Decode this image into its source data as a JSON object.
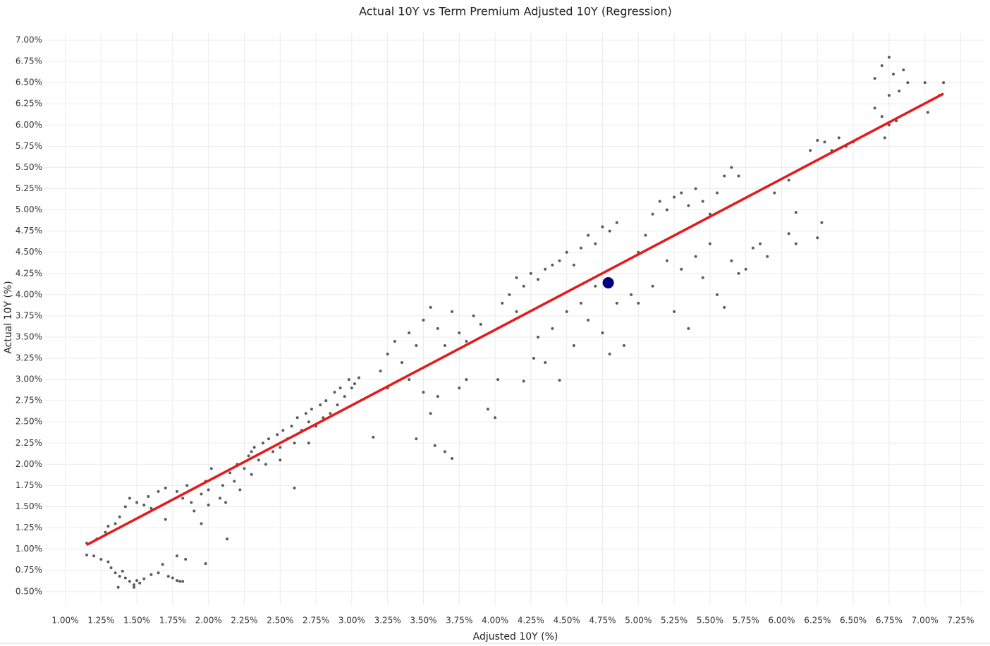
{
  "chart_data": {
    "type": "scatter",
    "title": "Actual 10Y vs Term Premium Adjusted 10Y (Regression)",
    "x_label": "Adjusted 10Y (%)",
    "y_label": "Actual 10Y (%)",
    "grid": true,
    "xlim": [
      0.85,
      7.41
    ],
    "ylim": [
      0.34,
      7.1
    ],
    "xticks": [
      {
        "value": 1,
        "label": "1.00%"
      },
      {
        "value": 1.25,
        "label": "1.25%"
      },
      {
        "value": 1.5,
        "label": "1.50%"
      },
      {
        "value": 1.75,
        "label": "1.75%"
      },
      {
        "value": 2,
        "label": "2.00%"
      },
      {
        "value": 2.25,
        "label": "2.25%"
      },
      {
        "value": 2.5,
        "label": "2.50%"
      },
      {
        "value": 2.75,
        "label": "2.75%"
      },
      {
        "value": 3,
        "label": "3.00%"
      },
      {
        "value": 3.25,
        "label": "3.25%"
      },
      {
        "value": 3.5,
        "label": "3.50%"
      },
      {
        "value": 3.75,
        "label": "3.75%"
      },
      {
        "value": 4,
        "label": "4.00%"
      },
      {
        "value": 4.25,
        "label": "4.25%"
      },
      {
        "value": 4.5,
        "label": "4.50%"
      },
      {
        "value": 4.75,
        "label": "4.75%"
      },
      {
        "value": 5,
        "label": "5.00%"
      },
      {
        "value": 5.25,
        "label": "5.25%"
      },
      {
        "value": 5.5,
        "label": "5.50%"
      },
      {
        "value": 5.75,
        "label": "5.75%"
      },
      {
        "value": 6,
        "label": "6.00%"
      },
      {
        "value": 6.25,
        "label": "6.25%"
      },
      {
        "value": 6.5,
        "label": "6.50%"
      },
      {
        "value": 6.75,
        "label": "6.75%"
      },
      {
        "value": 7,
        "label": "7.00%"
      },
      {
        "value": 7.25,
        "label": "7.25%"
      }
    ],
    "yticks": [
      {
        "value": 0.5,
        "label": "0.50%"
      },
      {
        "value": 0.75,
        "label": "0.75%"
      },
      {
        "value": 1,
        "label": "1.00%"
      },
      {
        "value": 1.25,
        "label": "1.25%"
      },
      {
        "value": 1.5,
        "label": "1.50%"
      },
      {
        "value": 1.75,
        "label": "1.75%"
      },
      {
        "value": 2,
        "label": "2.00%"
      },
      {
        "value": 2.25,
        "label": "2.25%"
      },
      {
        "value": 2.5,
        "label": "2.50%"
      },
      {
        "value": 2.75,
        "label": "2.75%"
      },
      {
        "value": 3,
        "label": "3.00%"
      },
      {
        "value": 3.25,
        "label": "3.25%"
      },
      {
        "value": 3.5,
        "label": "3.50%"
      },
      {
        "value": 3.75,
        "label": "3.75%"
      },
      {
        "value": 4,
        "label": "4.00%"
      },
      {
        "value": 4.25,
        "label": "4.25%"
      },
      {
        "value": 4.5,
        "label": "4.50%"
      },
      {
        "value": 4.75,
        "label": "4.75%"
      },
      {
        "value": 5,
        "label": "5.00%"
      },
      {
        "value": 5.25,
        "label": "5.25%"
      },
      {
        "value": 5.5,
        "label": "5.50%"
      },
      {
        "value": 5.75,
        "label": "5.75%"
      },
      {
        "value": 6,
        "label": "6.00%"
      },
      {
        "value": 6.25,
        "label": "6.25%"
      },
      {
        "value": 6.5,
        "label": "6.50%"
      },
      {
        "value": 6.75,
        "label": "6.75%"
      },
      {
        "value": 7,
        "label": "7.00%"
      }
    ],
    "series": [
      {
        "color": "#333333",
        "mode": "markers",
        "size": 2,
        "x": [
          1.15,
          1.2,
          1.25,
          1.3,
          1.32,
          1.35,
          1.38,
          1.4,
          1.42,
          1.45,
          1.48,
          1.5,
          1.52,
          1.55,
          1.6,
          1.65,
          1.68,
          1.72,
          1.75,
          1.78,
          1.8,
          1.82,
          1.78,
          1.84,
          1.37,
          1.48,
          1.15,
          1.22,
          1.28,
          1.3,
          1.35,
          1.38,
          1.42,
          1.45,
          1.5,
          1.55,
          1.58,
          1.6,
          1.65,
          1.7,
          1.78,
          1.82,
          1.85,
          1.88,
          1.9,
          1.95,
          1.98,
          2.0,
          2.02,
          2.05,
          2.08,
          2.1,
          2.12,
          2.15,
          2.18,
          2.2,
          2.22,
          2.25,
          2.28,
          2.3,
          2.32,
          2.35,
          2.38,
          2.4,
          2.42,
          2.45,
          2.48,
          2.5,
          2.52,
          2.55,
          2.58,
          2.6,
          2.62,
          2.65,
          2.68,
          2.7,
          2.72,
          2.75,
          2.78,
          2.8,
          2.82,
          2.85,
          2.88,
          2.9,
          2.92,
          2.95,
          2.98,
          3.0,
          3.02,
          3.05,
          1.7,
          1.95,
          2.13,
          1.98,
          2.6,
          2.3,
          2.0,
          2.5,
          2.7,
          3.15,
          3.2,
          3.25,
          3.3,
          3.35,
          3.4,
          3.45,
          3.5,
          3.55,
          3.6,
          3.65,
          3.7,
          3.75,
          3.8,
          3.85,
          3.5,
          3.55,
          3.45,
          3.58,
          3.65,
          3.7,
          3.75,
          3.8,
          3.25,
          3.4,
          3.6,
          4.0,
          3.95,
          4.02,
          3.9,
          4.05,
          4.1,
          4.15,
          4.2,
          4.25,
          4.3,
          4.35,
          4.4,
          4.45,
          4.5,
          4.55,
          4.6,
          4.65,
          4.7,
          4.75,
          4.8,
          4.85,
          4.3,
          4.35,
          4.4,
          4.5,
          4.55,
          4.6,
          4.65,
          4.7,
          4.75,
          4.8,
          4.85,
          4.9,
          4.95,
          5.0,
          5.05,
          5.1,
          5.15,
          5.2,
          5.25,
          5.3,
          5.35,
          5.4,
          5.45,
          5.5,
          5.55,
          5.6,
          5.65,
          5.7,
          5.1,
          5.2,
          5.25,
          5.3,
          5.35,
          5.4,
          5.45,
          5.5,
          5.55,
          5.6,
          5.65,
          5.7,
          5.75,
          5.8,
          5.85,
          5.0,
          4.2,
          4.45,
          4.27,
          4.15,
          5.9,
          6.05,
          6.1,
          6.1,
          6.25,
          6.28,
          5.95,
          6.05,
          6.15,
          6.2,
          6.25,
          6.3,
          6.35,
          6.4,
          6.45,
          6.5,
          6.6,
          6.65,
          6.7,
          6.72,
          6.75,
          6.8,
          6.65,
          6.7,
          6.75,
          6.78,
          6.82,
          6.85,
          6.88,
          7.0,
          7.02,
          7.1,
          7.13,
          6.75
        ],
        "values": [
          0.93,
          0.92,
          0.88,
          0.85,
          0.78,
          0.72,
          0.68,
          0.74,
          0.66,
          0.62,
          0.58,
          0.63,
          0.6,
          0.65,
          0.7,
          0.72,
          0.82,
          0.68,
          0.66,
          0.63,
          0.62,
          0.62,
          0.92,
          0.88,
          0.55,
          0.55,
          1.07,
          1.12,
          1.2,
          1.27,
          1.3,
          1.38,
          1.5,
          1.6,
          1.55,
          1.52,
          1.62,
          1.48,
          1.68,
          1.72,
          1.68,
          1.6,
          1.75,
          1.55,
          1.45,
          1.65,
          1.8,
          1.7,
          1.95,
          1.85,
          1.6,
          1.75,
          1.55,
          1.9,
          1.8,
          2.0,
          1.7,
          1.95,
          2.1,
          1.88,
          2.2,
          2.05,
          2.25,
          2.0,
          2.3,
          2.15,
          2.35,
          2.2,
          2.4,
          2.3,
          2.45,
          2.25,
          2.55,
          2.4,
          2.6,
          2.5,
          2.65,
          2.45,
          2.7,
          2.55,
          2.75,
          2.6,
          2.85,
          2.7,
          2.9,
          2.8,
          3.0,
          2.9,
          2.95,
          3.02,
          1.35,
          1.3,
          1.12,
          0.83,
          1.72,
          2.15,
          1.52,
          2.05,
          2.25,
          2.32,
          3.1,
          3.3,
          3.45,
          3.2,
          3.55,
          3.4,
          3.7,
          3.85,
          3.6,
          3.4,
          3.8,
          3.55,
          3.45,
          3.75,
          2.85,
          2.6,
          2.3,
          2.22,
          2.15,
          2.07,
          2.9,
          3.0,
          2.9,
          3.0,
          2.8,
          2.55,
          2.65,
          3.0,
          3.65,
          3.9,
          4.0,
          4.2,
          4.1,
          4.25,
          4.18,
          4.3,
          4.35,
          4.4,
          4.5,
          4.35,
          4.55,
          4.7,
          4.6,
          4.8,
          4.75,
          4.85,
          3.5,
          3.2,
          3.6,
          3.8,
          3.4,
          3.9,
          3.7,
          4.1,
          3.55,
          3.3,
          3.9,
          3.4,
          4.0,
          4.5,
          4.7,
          4.95,
          5.1,
          5.0,
          5.15,
          5.2,
          5.05,
          5.25,
          5.1,
          4.95,
          5.2,
          5.4,
          5.5,
          5.4,
          4.1,
          4.4,
          3.8,
          4.3,
          3.6,
          4.45,
          4.2,
          4.6,
          4.0,
          3.85,
          4.4,
          4.25,
          4.3,
          4.55,
          4.6,
          3.9,
          2.98,
          2.99,
          3.25,
          3.8,
          4.45,
          4.72,
          4.97,
          4.6,
          4.67,
          4.85,
          5.2,
          5.35,
          5.5,
          5.7,
          5.82,
          5.8,
          5.7,
          5.85,
          5.75,
          5.8,
          5.9,
          6.2,
          6.1,
          5.85,
          6.0,
          6.05,
          6.55,
          6.7,
          6.8,
          6.6,
          6.4,
          6.65,
          6.5,
          6.5,
          6.15,
          6.35,
          6.5,
          6.35
        ]
      },
      {
        "color": "#e41a1c",
        "mode": "lines",
        "width": 3.5,
        "x": [
          1.15,
          7.13
        ],
        "values": [
          1.05,
          6.37
        ]
      },
      {
        "color": "#00007f",
        "mode": "markers",
        "size": 8,
        "x": [
          4.79
        ],
        "values": [
          4.14
        ]
      }
    ]
  }
}
